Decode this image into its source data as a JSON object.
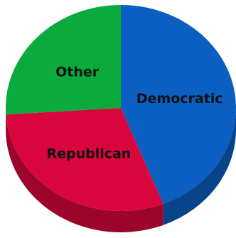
{
  "chart_data": {
    "type": "pie",
    "style": "3d",
    "title": "",
    "slices": [
      {
        "label": "Democratic",
        "value": 44,
        "color": "#0b5fc0"
      },
      {
        "label": "Republican",
        "value": 30,
        "color": "#d8063c"
      },
      {
        "label": "Other",
        "value": 26,
        "color": "#0aaa3c"
      }
    ]
  }
}
